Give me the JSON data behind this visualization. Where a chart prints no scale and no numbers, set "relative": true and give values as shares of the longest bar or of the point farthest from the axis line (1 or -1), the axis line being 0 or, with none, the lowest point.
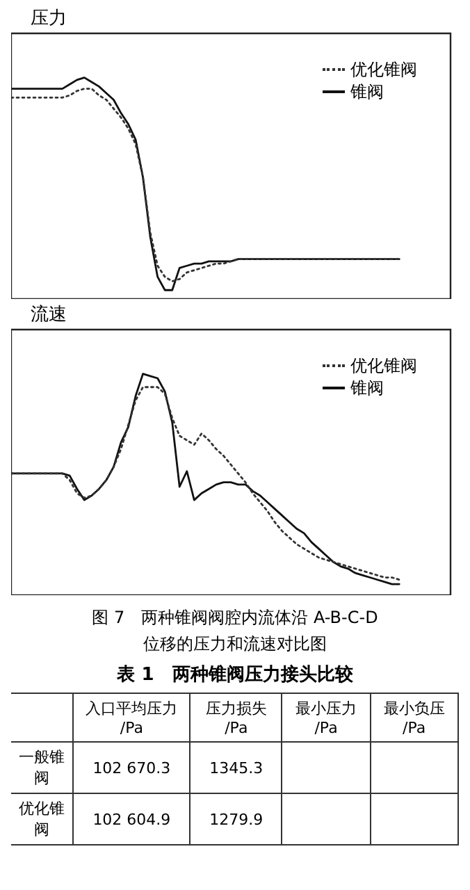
{
  "chart_data": [
    {
      "type": "line",
      "relative": true,
      "ylabel": "压力",
      "legend": "top right",
      "grid": false,
      "tick_labels": false,
      "marker": "none",
      "categories": [
        null,
        null,
        null,
        null,
        null,
        null,
        null,
        null,
        null,
        null,
        null,
        null,
        null,
        null,
        null,
        null,
        null,
        null,
        null,
        null,
        null,
        null,
        null,
        null,
        null,
        null,
        null,
        null,
        null,
        null,
        null,
        null,
        null,
        null,
        null,
        null,
        null,
        null,
        null,
        null,
        null,
        null,
        null,
        null,
        null,
        null,
        null,
        null,
        null,
        null,
        null,
        null,
        null,
        null,
        null,
        null,
        null,
        null,
        null,
        null,
        null
      ],
      "series": [
        {
          "name": "优化锥阀",
          "color": "#333333",
          "line_style": "dotted",
          "values": [
            0.91,
            0.91,
            0.91,
            0.91,
            0.91,
            0.91,
            0.91,
            0.91,
            0.92,
            0.94,
            0.95,
            0.95,
            0.92,
            0.9,
            0.86,
            0.82,
            0.77,
            0.7,
            0.55,
            0.3,
            0.15,
            0.1,
            0.08,
            0.09,
            0.12,
            0.13,
            0.14,
            0.15,
            0.16,
            0.16,
            0.17,
            0.18,
            0.18,
            0.18,
            0.18,
            0.18,
            0.18,
            0.18,
            0.18,
            0.18,
            0.18,
            0.18,
            0.18,
            0.18,
            0.18,
            0.18,
            0.18,
            0.18,
            0.18,
            0.18,
            0.18,
            0.18,
            0.18,
            0.18,
            null,
            null,
            null,
            null,
            null,
            null,
            null
          ]
        },
        {
          "name": "锥阀",
          "color": "#111111",
          "line_style": "solid",
          "values": [
            0.95,
            0.95,
            0.95,
            0.95,
            0.95,
            0.95,
            0.95,
            0.95,
            0.97,
            0.99,
            1.0,
            0.98,
            0.96,
            0.93,
            0.9,
            0.84,
            0.79,
            0.72,
            0.55,
            0.28,
            0.1,
            0.04,
            0.04,
            0.14,
            0.15,
            0.16,
            0.16,
            0.17,
            0.17,
            0.17,
            0.17,
            0.18,
            0.18,
            0.18,
            0.18,
            0.18,
            0.18,
            0.18,
            0.18,
            0.18,
            0.18,
            0.18,
            0.18,
            0.18,
            0.18,
            0.18,
            0.18,
            0.18,
            0.18,
            0.18,
            0.18,
            0.18,
            0.18,
            0.18,
            null,
            null,
            null,
            null,
            null,
            null,
            null
          ]
        }
      ]
    },
    {
      "type": "line",
      "relative": true,
      "ylabel": "流速",
      "legend": "top right",
      "grid": false,
      "tick_labels": false,
      "marker": "none",
      "categories": [
        null,
        null,
        null,
        null,
        null,
        null,
        null,
        null,
        null,
        null,
        null,
        null,
        null,
        null,
        null,
        null,
        null,
        null,
        null,
        null,
        null,
        null,
        null,
        null,
        null,
        null,
        null,
        null,
        null,
        null,
        null,
        null,
        null,
        null,
        null,
        null,
        null,
        null,
        null,
        null,
        null,
        null,
        null,
        null,
        null,
        null,
        null,
        null,
        null,
        null,
        null,
        null,
        null,
        null,
        null,
        null,
        null,
        null,
        null,
        null,
        null
      ],
      "annotations": [
        "图 7　两种锥阀阀腔内流体沿 A-B-C-D",
        "位移的压力和流速对比图"
      ],
      "series": [
        {
          "name": "优化锥阀",
          "color": "#333333",
          "line_style": "dotted",
          "values": [
            0.55,
            0.55,
            0.55,
            0.55,
            0.55,
            0.55,
            0.55,
            0.55,
            0.52,
            0.46,
            0.44,
            0.45,
            0.48,
            0.52,
            0.58,
            0.66,
            0.77,
            0.88,
            0.94,
            0.94,
            0.94,
            0.91,
            0.8,
            0.72,
            0.7,
            0.68,
            0.73,
            0.7,
            0.66,
            0.63,
            0.59,
            0.55,
            0.51,
            0.46,
            0.42,
            0.38,
            0.33,
            0.29,
            0.26,
            0.23,
            0.21,
            0.19,
            0.17,
            0.16,
            0.15,
            0.14,
            0.13,
            0.12,
            0.11,
            0.1,
            0.09,
            0.08,
            0.08,
            0.07,
            null,
            null,
            null,
            null,
            null,
            null,
            null
          ]
        },
        {
          "name": "锥阀",
          "color": "#111111",
          "line_style": "solid",
          "values": [
            0.55,
            0.55,
            0.55,
            0.55,
            0.55,
            0.55,
            0.55,
            0.55,
            0.54,
            0.48,
            0.43,
            0.45,
            0.48,
            0.52,
            0.58,
            0.69,
            0.76,
            0.9,
            1.0,
            0.99,
            0.98,
            0.92,
            0.78,
            0.49,
            0.56,
            0.43,
            0.46,
            0.48,
            0.5,
            0.51,
            0.51,
            0.5,
            0.5,
            0.47,
            0.45,
            0.42,
            0.39,
            0.36,
            0.33,
            0.3,
            0.28,
            0.24,
            0.21,
            0.18,
            0.15,
            0.13,
            0.12,
            0.1,
            0.09,
            0.08,
            0.07,
            0.06,
            0.05,
            0.05,
            null,
            null,
            null,
            null,
            null,
            null,
            null
          ]
        }
      ]
    },
    {
      "type": "other",
      "title": "表 1　两种锥阀压力接头比较",
      "categories": [
        "入口平均压力 /Pa",
        "压力损失 /Pa",
        "最小压力 /Pa",
        "最小负压 /Pa"
      ],
      "y_categories": [
        "一般锥阀",
        "优化锥阀"
      ],
      "cell_labels": [
        [
          "102 670.3",
          "1345.3",
          null,
          null
        ],
        [
          "102 604.9",
          "1279.9",
          null,
          null
        ]
      ]
    }
  ]
}
